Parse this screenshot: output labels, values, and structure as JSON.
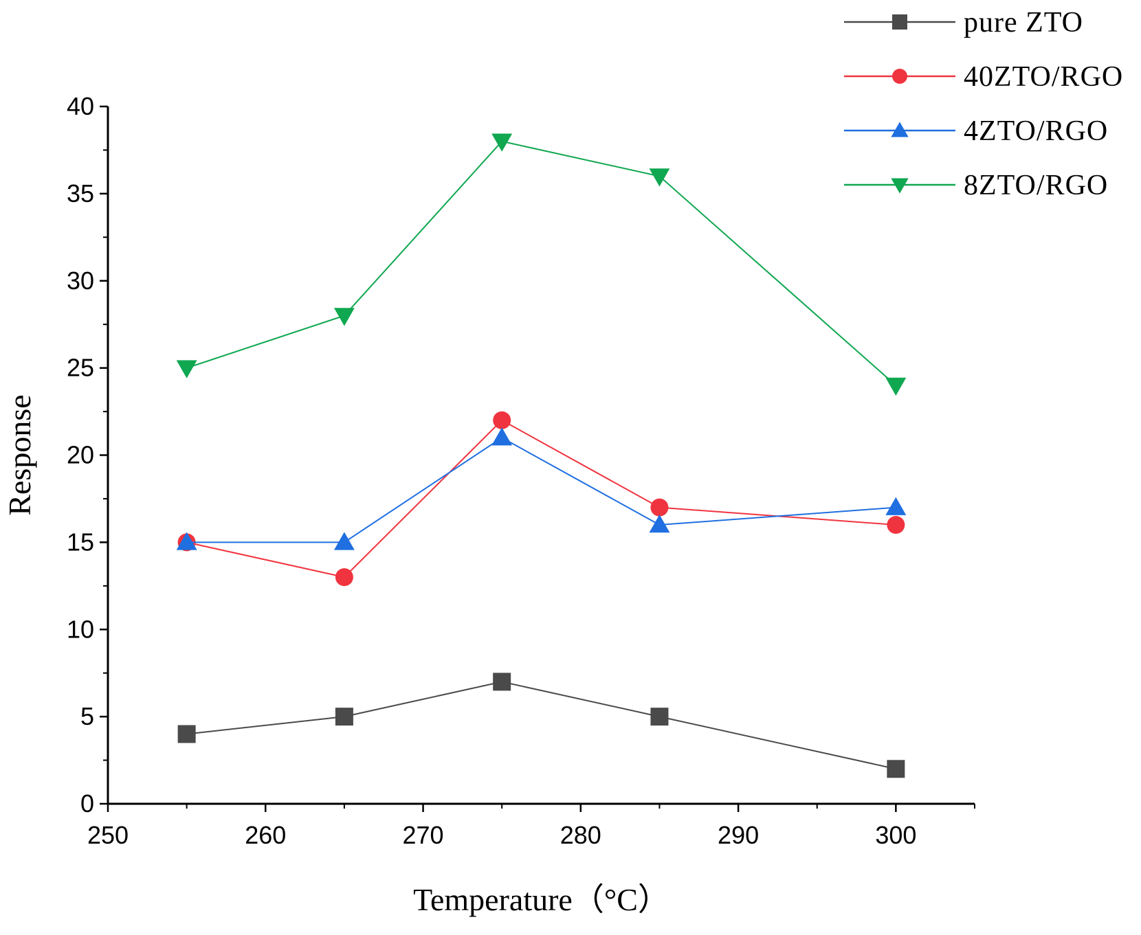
{
  "chart_data": {
    "type": "line",
    "title": "",
    "xlabel": "Temperature（°C）",
    "ylabel": "Response",
    "xlim": [
      250,
      305
    ],
    "ylim": [
      0,
      40
    ],
    "xticks": [
      250,
      260,
      270,
      280,
      290,
      300
    ],
    "yticks": [
      0,
      5,
      10,
      15,
      20,
      25,
      30,
      35,
      40
    ],
    "x": [
      255,
      265,
      275,
      285,
      300
    ],
    "legend_position": "top-right",
    "grid": false,
    "series": [
      {
        "name": "pure  ZTO",
        "marker": "square",
        "color": "#4a4a4a",
        "values": [
          4,
          5,
          7,
          5,
          2
        ]
      },
      {
        "name": "40ZTO/RGO",
        "marker": "circle",
        "color": "#f0343f",
        "values": [
          15,
          13,
          22,
          17,
          16
        ]
      },
      {
        "name": "4ZTO/RGO",
        "marker": "triangle-up",
        "color": "#1f6fe0",
        "values": [
          15,
          15,
          21,
          16,
          17
        ]
      },
      {
        "name": "8ZTO/RGO",
        "marker": "triangle-down",
        "color": "#0fa750",
        "values": [
          25,
          28,
          38,
          36,
          24
        ]
      }
    ]
  }
}
